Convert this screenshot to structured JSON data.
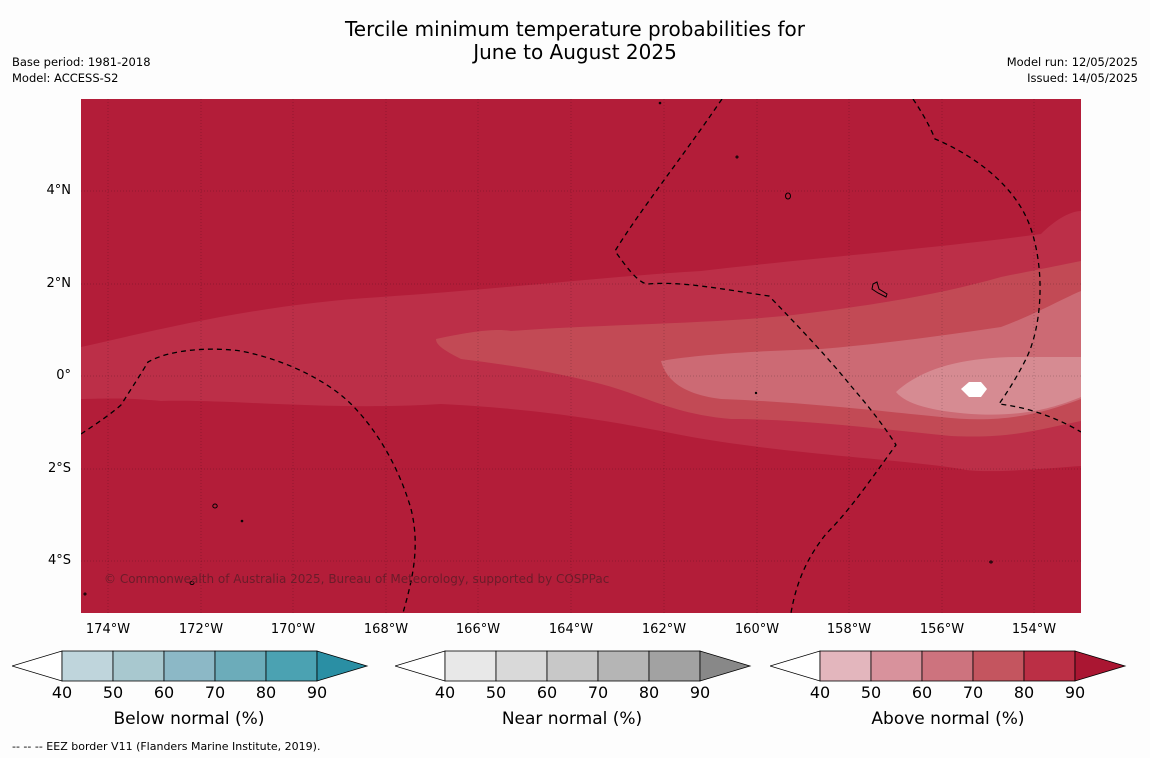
{
  "title_line1": "Tercile minimum temperature probabilities for",
  "title_line2": "June to August 2025",
  "base_period": "Base period: 1981-2018",
  "model": "Model: ACCESS-S2",
  "model_run": "Model run: 12/05/2025",
  "issued": "Issued: 14/05/2025",
  "copyright": "© Commonwealth of Australia 2025, Bureau of Meteorology, supported by COSPPac",
  "footnote": "--  --  -- EEZ border V11 (Flanders Marine Institute, 2019).",
  "map": {
    "lat_labels": [
      "4°N",
      "2°N",
      "0°",
      "2°S",
      "4°S"
    ],
    "lon_labels": [
      "174°W",
      "172°W",
      "170°W",
      "168°W",
      "166°W",
      "164°W",
      "162°W",
      "160°W",
      "158°W",
      "156°W",
      "154°W"
    ],
    "lat_range": [
      -5.1,
      6.0
    ],
    "lon_range": [
      -174.6,
      -153.0
    ],
    "fill_colors": {
      "base": "#b31d39",
      "c80_90": "#bc2f48",
      "c70_80": "#c24a55",
      "c60_70": "#cc6a74",
      "c50_60": "#d68b92",
      "white": "#ffffff"
    }
  },
  "colorbars": [
    {
      "label": "Below normal (%)",
      "ticks": [
        "40",
        "50",
        "60",
        "70",
        "80",
        "90"
      ],
      "colors": [
        "#bfd5dc",
        "#a8c8cf",
        "#8cb8c6",
        "#6cacba",
        "#4ba2b2",
        "#2a8fa4"
      ]
    },
    {
      "label": "Near normal (%)",
      "ticks": [
        "40",
        "50",
        "60",
        "70",
        "80",
        "90"
      ],
      "colors": [
        "#e8e8e8",
        "#d9d9d9",
        "#c8c8c8",
        "#b5b5b5",
        "#a2a2a2",
        "#888888"
      ]
    },
    {
      "label": "Above normal (%)",
      "ticks": [
        "40",
        "50",
        "60",
        "70",
        "80",
        "90"
      ],
      "colors": [
        "#e3b6bd",
        "#d8929c",
        "#cd737e",
        "#c4555f",
        "#bb2f45",
        "#aa1632"
      ]
    }
  ]
}
